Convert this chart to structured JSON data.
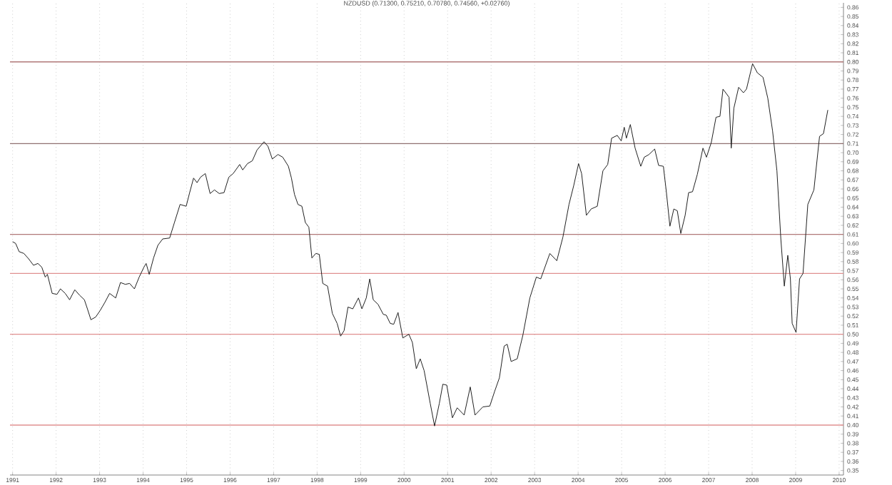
{
  "chart_data": {
    "type": "line",
    "title": "NZDUSD (0.71300, 0.75210, 0.70780, 0.74560, +0.02760)",
    "color": "#202020",
    "grid": "x",
    "marker": "none",
    "line_style": "solid",
    "xlim": [
      1990.94,
      2010.1
    ],
    "ylim": [
      0.345,
      0.865
    ],
    "xticks": [
      1991,
      1992,
      1993,
      1994,
      1995,
      1996,
      1997,
      1998,
      1999,
      2000,
      2001,
      2002,
      2003,
      2004,
      2005,
      2006,
      2007,
      2008,
      2009,
      2010
    ],
    "yticks": [
      0.35,
      0.36,
      0.37,
      0.38,
      0.39,
      {
        "value": 0.4,
        "label": "0.40"
      },
      0.41,
      0.42,
      0.43,
      0.44,
      0.45,
      0.46,
      0.47,
      0.48,
      0.49,
      {
        "value": 0.5,
        "label": "0.50"
      },
      0.51,
      0.52,
      0.53,
      0.54,
      0.55,
      0.56,
      0.57,
      0.58,
      0.59,
      {
        "value": 0.6,
        "label": "0.60"
      },
      0.61,
      0.62,
      0.63,
      0.64,
      0.65,
      0.66,
      0.67,
      0.68,
      0.69,
      {
        "value": 0.7,
        "label": "0.70"
      },
      0.71,
      0.72,
      0.73,
      0.74,
      0.75,
      0.76,
      0.77,
      0.78,
      0.79,
      {
        "value": 0.8,
        "label": "0.80"
      },
      0.81,
      0.82,
      0.83,
      0.84,
      0.85,
      0.86
    ],
    "ref_lines": [
      {
        "axis": "y",
        "value": 0.8,
        "color": "#b07878"
      },
      {
        "axis": "y",
        "value": 0.71,
        "color": "#907070"
      },
      {
        "axis": "y",
        "value": 0.61,
        "color": "#b07878"
      },
      {
        "axis": "y",
        "value": 0.567,
        "color": "#e09090"
      },
      {
        "axis": "y",
        "value": 0.5,
        "color": "#e09090"
      },
      {
        "axis": "y",
        "value": 0.4,
        "color": "#e09090"
      }
    ],
    "x": [
      1991.0,
      1991.07,
      1991.15,
      1991.26,
      1991.37,
      1991.48,
      1991.58,
      1991.67,
      1991.75,
      1991.8,
      1991.91,
      1992.02,
      1992.1,
      1992.21,
      1992.31,
      1992.43,
      1992.54,
      1992.65,
      1992.72,
      1992.8,
      1992.91,
      1993.01,
      1993.12,
      1993.23,
      1993.37,
      1993.48,
      1993.59,
      1993.69,
      1993.8,
      1993.91,
      1994.02,
      1994.07,
      1994.14,
      1994.24,
      1994.34,
      1994.45,
      1994.61,
      1994.72,
      1994.85,
      1994.99,
      1995.07,
      1995.16,
      1995.24,
      1995.32,
      1995.43,
      1995.54,
      1995.64,
      1995.75,
      1995.86,
      1995.97,
      1996.07,
      1996.22,
      1996.29,
      1996.4,
      1996.51,
      1996.62,
      1996.78,
      1996.87,
      1996.97,
      1997.1,
      1997.21,
      1997.34,
      1997.41,
      1997.48,
      1997.56,
      1997.65,
      1997.73,
      1997.81,
      1997.88,
      1997.97,
      1998.05,
      1998.13,
      1998.24,
      1998.35,
      1998.46,
      1998.54,
      1998.62,
      1998.71,
      1998.82,
      1998.95,
      1999.03,
      1999.13,
      1999.21,
      1999.29,
      1999.4,
      1999.52,
      1999.59,
      1999.68,
      1999.76,
      1999.86,
      1999.97,
      2000.11,
      2000.19,
      2000.28,
      2000.37,
      2000.46,
      2000.6,
      2000.7,
      2000.81,
      2000.89,
      2000.98,
      2001.11,
      2001.22,
      2001.38,
      2001.52,
      2001.63,
      2001.81,
      2001.97,
      2002.08,
      2002.19,
      2002.3,
      2002.37,
      2002.46,
      2002.6,
      2002.73,
      2002.89,
      2003.04,
      2003.14,
      2003.35,
      2003.51,
      2003.65,
      2003.79,
      2003.9,
      2004.01,
      2004.08,
      2004.19,
      2004.3,
      2004.44,
      2004.57,
      2004.68,
      2004.77,
      2004.9,
      2004.99,
      2005.06,
      2005.11,
      2005.2,
      2005.31,
      2005.44,
      2005.52,
      2005.63,
      2005.76,
      2005.85,
      2005.96,
      2006.03,
      2006.11,
      2006.2,
      2006.28,
      2006.36,
      2006.46,
      2006.54,
      2006.63,
      2006.74,
      2006.87,
      2006.95,
      2007.06,
      2007.17,
      2007.26,
      2007.33,
      2007.47,
      2007.52,
      2007.58,
      2007.69,
      2007.8,
      2007.87,
      2008.01,
      2008.12,
      2008.25,
      2008.36,
      2008.47,
      2008.57,
      2008.66,
      2008.74,
      2008.82,
      2008.88,
      2008.92,
      2009.01,
      2009.09,
      2009.17,
      2009.28,
      2009.42,
      2009.55,
      2009.64,
      2009.74
    ],
    "values": [
      0.602,
      0.6,
      0.591,
      0.589,
      0.583,
      0.576,
      0.578,
      0.574,
      0.563,
      0.566,
      0.545,
      0.544,
      0.55,
      0.545,
      0.538,
      0.549,
      0.543,
      0.538,
      0.528,
      0.516,
      0.519,
      0.526,
      0.535,
      0.545,
      0.54,
      0.557,
      0.555,
      0.556,
      0.55,
      0.563,
      0.574,
      0.578,
      0.566,
      0.584,
      0.598,
      0.605,
      0.606,
      0.623,
      0.643,
      0.641,
      0.656,
      0.672,
      0.667,
      0.673,
      0.677,
      0.655,
      0.659,
      0.655,
      0.656,
      0.673,
      0.677,
      0.687,
      0.681,
      0.688,
      0.691,
      0.703,
      0.712,
      0.707,
      0.693,
      0.698,
      0.695,
      0.685,
      0.672,
      0.654,
      0.643,
      0.641,
      0.623,
      0.618,
      0.584,
      0.589,
      0.588,
      0.556,
      0.553,
      0.523,
      0.512,
      0.498,
      0.504,
      0.53,
      0.528,
      0.54,
      0.528,
      0.54,
      0.561,
      0.538,
      0.533,
      0.522,
      0.521,
      0.512,
      0.511,
      0.524,
      0.496,
      0.5,
      0.491,
      0.462,
      0.473,
      0.46,
      0.424,
      0.399,
      0.424,
      0.445,
      0.444,
      0.408,
      0.419,
      0.411,
      0.442,
      0.411,
      0.42,
      0.421,
      0.437,
      0.452,
      0.487,
      0.489,
      0.47,
      0.473,
      0.499,
      0.54,
      0.563,
      0.561,
      0.589,
      0.581,
      0.607,
      0.643,
      0.664,
      0.688,
      0.677,
      0.631,
      0.638,
      0.641,
      0.68,
      0.687,
      0.716,
      0.719,
      0.713,
      0.728,
      0.716,
      0.731,
      0.705,
      0.685,
      0.695,
      0.698,
      0.704,
      0.686,
      0.685,
      0.656,
      0.619,
      0.638,
      0.636,
      0.611,
      0.631,
      0.656,
      0.657,
      0.676,
      0.705,
      0.695,
      0.711,
      0.739,
      0.74,
      0.77,
      0.761,
      0.705,
      0.749,
      0.772,
      0.766,
      0.77,
      0.798,
      0.788,
      0.783,
      0.76,
      0.724,
      0.68,
      0.605,
      0.553,
      0.587,
      0.561,
      0.512,
      0.502,
      0.561,
      0.567,
      0.643,
      0.659,
      0.718,
      0.721,
      0.747
    ]
  }
}
